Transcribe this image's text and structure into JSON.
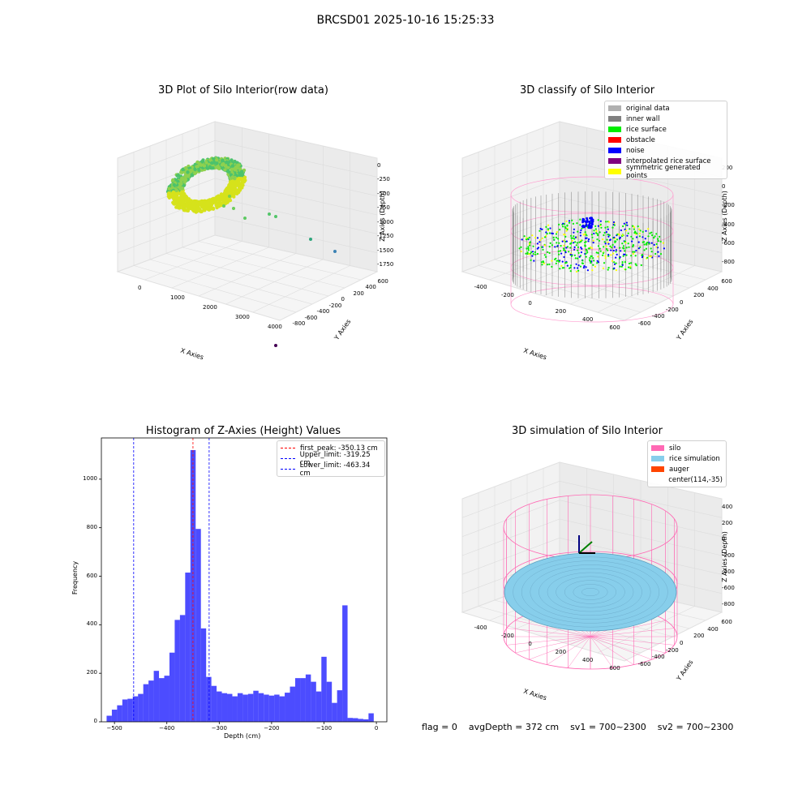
{
  "figure_title": "BRCSD01 2025-10-16 15:25:33",
  "footer": {
    "flag": "flag = 0",
    "avg_depth": "avgDepth = 372 cm",
    "sv1": "sv1 = 700~2300",
    "sv2": "sv2 = 700~2300"
  },
  "chart_data": [
    {
      "type": "scatter",
      "title": "3D Plot of Silo Interior(row data)",
      "xlabel": "X Axies",
      "ylabel": "Y Axies",
      "zlabel": "Z Axies (Depth)",
      "x_ticks": [
        "0",
        "1000",
        "2000",
        "3000",
        "4000"
      ],
      "y_ticks": [
        "-800",
        "-600",
        "-400",
        "-200",
        "0",
        "200",
        "400",
        "600"
      ],
      "z_ticks": [
        "0",
        "-250",
        "-500",
        "-750",
        "-1000",
        "-1250",
        "-1500",
        "-1750"
      ],
      "colors": {
        "near": "#e4e418",
        "far": "#2ea55f",
        "outlier": "#440154"
      }
    },
    {
      "type": "scatter",
      "title": "3D classify of Silo Interior",
      "xlabel": "X Axies",
      "ylabel": "Y Axies",
      "zlabel": "Z Axies (Depth)",
      "x_ticks": [
        "-400",
        "-200",
        "0",
        "200",
        "400",
        "600"
      ],
      "y_ticks": [
        "-600",
        "-400",
        "-200",
        "0",
        "200",
        "400",
        "600"
      ],
      "z_ticks": [
        "200",
        "0",
        "-200",
        "-400",
        "-600",
        "-800"
      ],
      "z_tick_top": "200",
      "legend": [
        {
          "label": "original data",
          "color": "#b0b0b0"
        },
        {
          "label": "inner wall",
          "color": "#808080"
        },
        {
          "label": "rice surface",
          "color": "#00ee00"
        },
        {
          "label": "obstacle",
          "color": "#ff0000"
        },
        {
          "label": "noise",
          "color": "#0000ff"
        },
        {
          "label": "interpolated rice surface",
          "color": "#800080"
        },
        {
          "label": "symmetric generated points",
          "color": "#ffff00"
        }
      ]
    },
    {
      "type": "bar",
      "title": "Histogram of Z-Axies (Height) Values",
      "xlabel": "Depth (cm)",
      "ylabel": "Frequency",
      "xlim": [
        -525,
        20
      ],
      "ylim": [
        0,
        1170
      ],
      "x_ticks": [
        -500,
        -400,
        -300,
        -200,
        -100,
        0
      ],
      "y_ticks": [
        0,
        200,
        400,
        600,
        800,
        1000
      ],
      "bin_width": 10,
      "bin_starts": [
        -515,
        -505,
        -495,
        -485,
        -475,
        -465,
        -455,
        -445,
        -435,
        -425,
        -415,
        -405,
        -395,
        -385,
        -375,
        -365,
        -355,
        -345,
        -335,
        -325,
        -315,
        -305,
        -295,
        -285,
        -275,
        -265,
        -255,
        -245,
        -235,
        -225,
        -215,
        -205,
        -195,
        -185,
        -175,
        -165,
        -155,
        -145,
        -135,
        -125,
        -115,
        -105,
        -95,
        -85,
        -75,
        -65,
        -55,
        -45,
        -35,
        -25,
        -15,
        -5
      ],
      "values": [
        25,
        50,
        68,
        92,
        95,
        105,
        115,
        155,
        170,
        210,
        180,
        190,
        285,
        420,
        440,
        615,
        1120,
        795,
        385,
        185,
        148,
        125,
        118,
        115,
        105,
        118,
        112,
        115,
        128,
        118,
        112,
        108,
        112,
        105,
        120,
        145,
        180,
        180,
        195,
        165,
        125,
        268,
        165,
        78,
        130,
        480,
        16,
        15,
        12,
        10,
        35,
        0
      ],
      "bar_color": "#0000ff",
      "lines": [
        {
          "label": "first_peak: -350.13 cm",
          "x": -350.13,
          "color": "#ff0000"
        },
        {
          "label": "Upper_limit: -319.25 cm",
          "x": -319.25,
          "color": "#0000ff"
        },
        {
          "label": "Lower_limit: -463.34 cm",
          "x": -463.34,
          "color": "#0000ff"
        }
      ]
    },
    {
      "type": "scatter",
      "title": "3D simulation of Silo Interior",
      "xlabel": "X Axies",
      "ylabel": "Y Axies",
      "zlabel": "Z Axies (Depth)",
      "x_ticks": [
        "-400",
        "-200",
        "0",
        "200",
        "400",
        "600"
      ],
      "y_ticks": [
        "-600",
        "-400",
        "-200",
        "0",
        "200",
        "400",
        "600"
      ],
      "z_ticks": [
        "400",
        "200",
        "0",
        "-200",
        "-400",
        "-600",
        "-800"
      ],
      "legend": [
        {
          "label": "silo",
          "color": "#ff69b4"
        },
        {
          "label": "rice simulation",
          "color": "#87ceeb"
        },
        {
          "label": "auger",
          "color": "#ff4500"
        },
        {
          "label": "center(114,-35)",
          "color": ""
        }
      ]
    }
  ]
}
